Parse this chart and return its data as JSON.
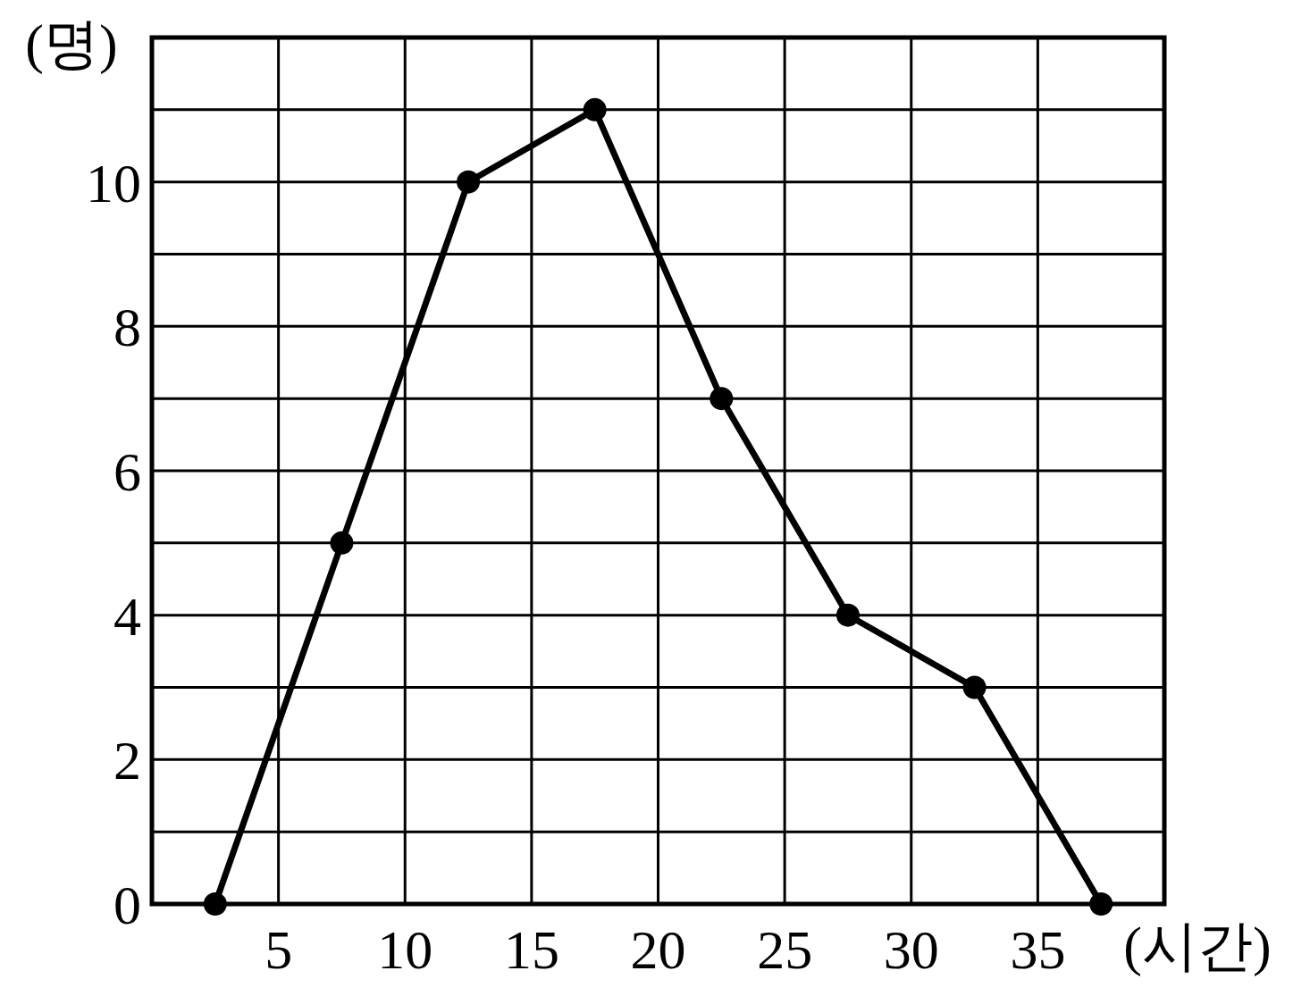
{
  "chart_data": {
    "type": "line",
    "xlabel": "(시간)",
    "ylabel": "(명)",
    "x": [
      2.5,
      7.5,
      12.5,
      17.5,
      22.5,
      27.5,
      32.5,
      37.5
    ],
    "values": [
      0,
      5,
      10,
      11,
      7,
      4,
      3,
      0
    ],
    "color": "#000000",
    "xlim": [
      0,
      40
    ],
    "xticks": [
      {
        "value": 0,
        "label": null
      },
      5,
      10,
      15,
      20,
      25,
      30,
      35,
      {
        "value": 40,
        "label": null
      }
    ],
    "ylim": [
      0,
      12
    ],
    "yticks": [
      0,
      {
        "value": 1,
        "label": null
      },
      2,
      {
        "value": 3,
        "label": null
      },
      4,
      {
        "value": 5,
        "label": null
      },
      6,
      {
        "value": 7,
        "label": null
      },
      8,
      {
        "value": 9,
        "label": null
      },
      10,
      {
        "value": 11,
        "label": null
      },
      {
        "value": 12,
        "label": null
      }
    ],
    "grid": true,
    "marker": "circle",
    "line_style": "solid"
  }
}
